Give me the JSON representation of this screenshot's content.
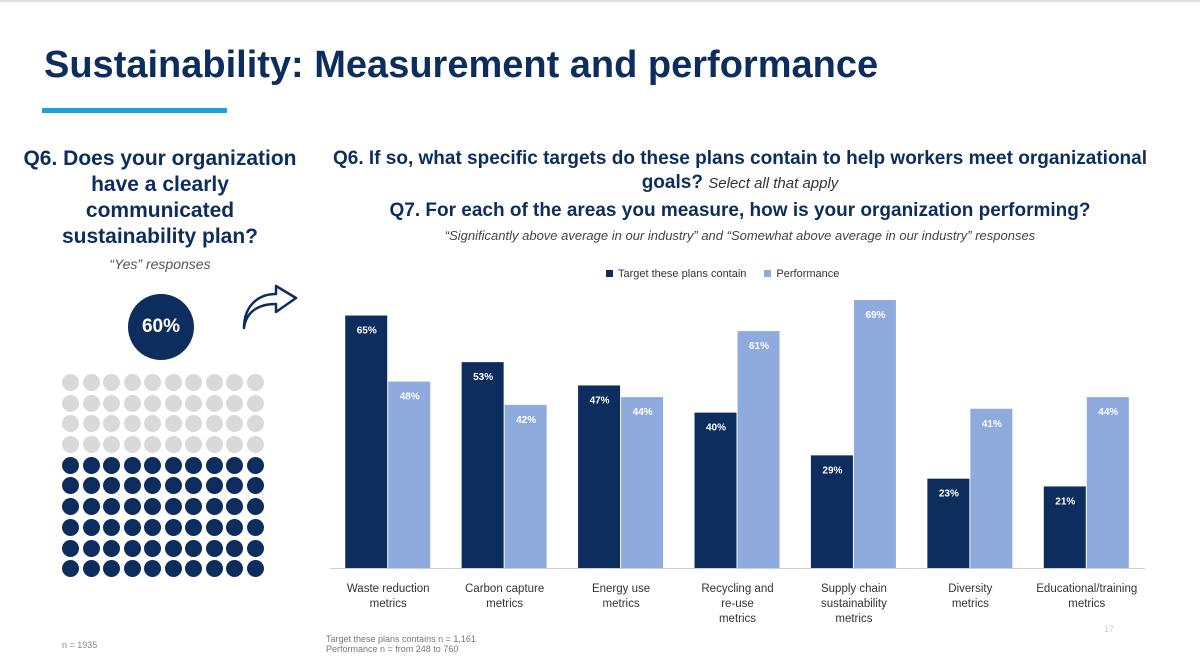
{
  "title": "Sustainability: Measurement and performance",
  "left": {
    "question": "Q6. Does your organization have a clearly communicated sustainability plan?",
    "subtitle": "“Yes” responses",
    "value_label": "60%",
    "value": 60,
    "n": "n = 1935"
  },
  "right": {
    "q6": "Q6. If so, what specific targets do these plans contain to help workers meet organizational goals?",
    "q6_note": "Select all that apply",
    "q7": "Q7. For each of the areas you measure, how is your organization performing?",
    "q7_sub": "“Significantly above average in our industry” and “Somewhat above average in our industry” responses"
  },
  "footnotes": [
    "Target these plans contains n = 1,161",
    "Performance n = from 248 to 760"
  ],
  "page_number": "17",
  "colors": {
    "dark": "#0d2d5e",
    "light": "#8faadc",
    "grey": "#d9d9d9",
    "accent": "#1aa3db"
  },
  "chart_data": {
    "type": "bar",
    "categories": [
      [
        "Waste reduction",
        "metrics"
      ],
      [
        "Carbon capture",
        "metrics"
      ],
      [
        "Energy use",
        "metrics"
      ],
      [
        "Recycling and",
        "re-use",
        "metrics"
      ],
      [
        "Supply chain",
        "sustainability",
        "metrics"
      ],
      [
        "Diversity",
        "metrics"
      ],
      [
        "Educational/training",
        "metrics"
      ]
    ],
    "series": [
      {
        "name": "Target these plans contain",
        "values": [
          65,
          53,
          47,
          40,
          29,
          23,
          21
        ]
      },
      {
        "name": "Performance",
        "values": [
          48,
          42,
          44,
          61,
          69,
          41,
          44
        ]
      }
    ],
    "ylim": [
      0,
      69
    ],
    "grid": false,
    "legend": "top-center",
    "data_label_suffix": "%"
  }
}
